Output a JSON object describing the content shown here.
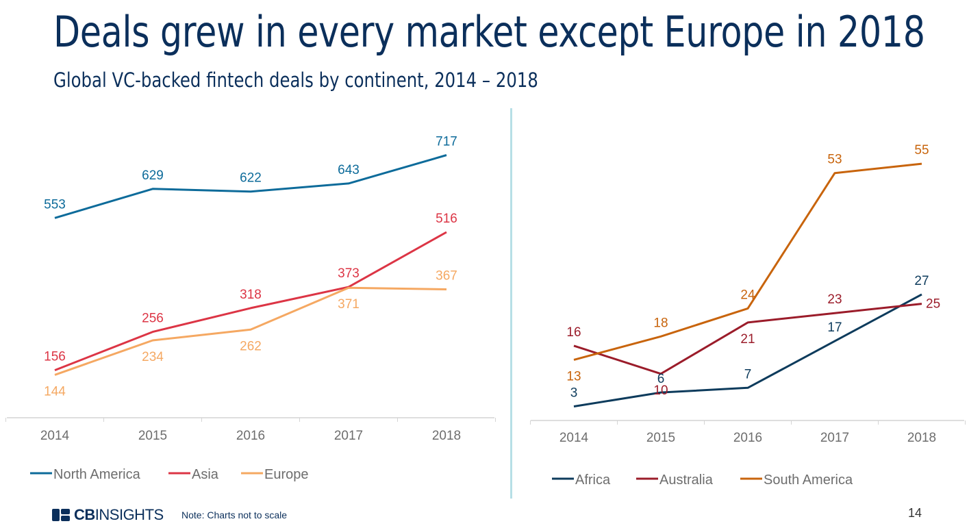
{
  "title": "Deals grew in every market except Europe in 2018",
  "subtitle": "Global VC-backed fintech deals by continent, 2014 – 2018",
  "footer": {
    "logo_bold": "CB",
    "logo_thin": "INSIGHTS",
    "note": "Note: Charts not to scale",
    "page_number": "14"
  },
  "chart_data": [
    {
      "type": "line",
      "categories": [
        "2014",
        "2015",
        "2016",
        "2017",
        "2018"
      ],
      "series": [
        {
          "name": "North America",
          "color": "#0d6b9a",
          "values": [
            553,
            629,
            622,
            643,
            717
          ],
          "label_pos": [
            "above",
            "above",
            "above",
            "above",
            "above"
          ]
        },
        {
          "name": "Asia",
          "color": "#dc3545",
          "values": [
            156,
            256,
            318,
            373,
            516
          ],
          "label_pos": [
            "above",
            "above",
            "above",
            "above",
            "above"
          ]
        },
        {
          "name": "Europe",
          "color": "#f5a862",
          "values": [
            144,
            234,
            262,
            371,
            367
          ],
          "label_pos": [
            "below",
            "below",
            "below",
            "below",
            "above"
          ]
        }
      ],
      "ylim": [
        50,
        800
      ],
      "grid": false,
      "legend": "bottom"
    },
    {
      "type": "line",
      "categories": [
        "2014",
        "2015",
        "2016",
        "2017",
        "2018"
      ],
      "series": [
        {
          "name": "Africa",
          "color": "#0d3b5c",
          "values": [
            3,
            6,
            7,
            17,
            27
          ],
          "label_pos": [
            "above",
            "above",
            "above",
            "above",
            "above"
          ]
        },
        {
          "name": "Australia",
          "color": "#9b1c2a",
          "values": [
            16,
            10,
            21,
            23,
            25
          ],
          "label_pos": [
            "above",
            "below",
            "below",
            "above",
            "right"
          ]
        },
        {
          "name": "South America",
          "color": "#c8640c",
          "values": [
            13,
            18,
            24,
            53,
            55
          ],
          "label_pos": [
            "below",
            "above",
            "above",
            "above",
            "above"
          ]
        }
      ],
      "ylim": [
        0,
        60
      ],
      "grid": false,
      "legend": "bottom"
    }
  ]
}
